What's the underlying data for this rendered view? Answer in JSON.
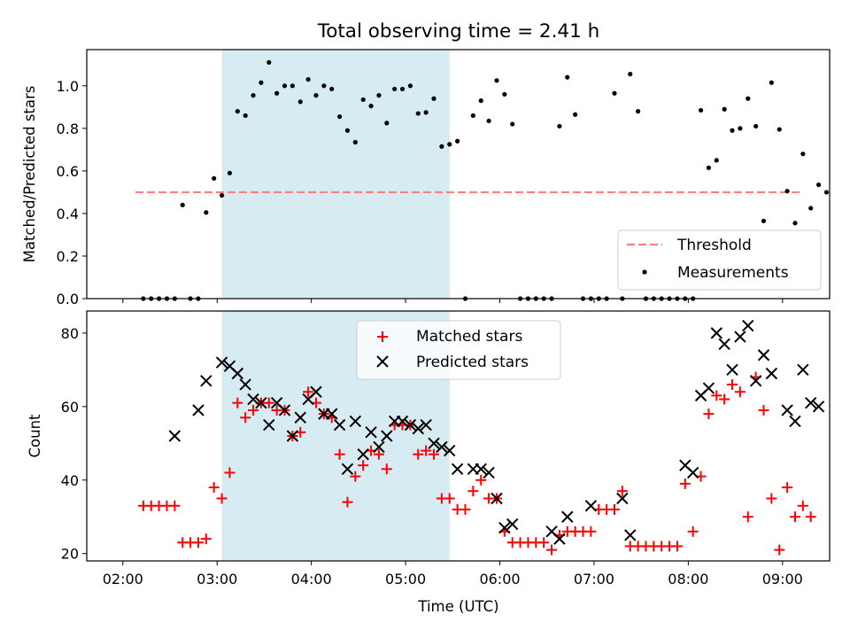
{
  "figure": {
    "title": "Total observing time = 2.41 h",
    "xlabel": "Time (UTC)",
    "xticks": [
      "02:00",
      "03:00",
      "04:00",
      "05:00",
      "06:00",
      "07:00",
      "08:00",
      "09:00"
    ],
    "shaded_interval": [
      "03:03",
      "05:28"
    ],
    "shade_color": "#add8e6"
  },
  "chart_data": [
    {
      "type": "scatter",
      "ylabel": "Matched/Predicted stars",
      "xlim": [
        "01:37",
        "09:30"
      ],
      "ylim": [
        0,
        1.17
      ],
      "yticks": [
        "0.0",
        "0.2",
        "0.4",
        "0.6",
        "0.8",
        "1.0"
      ],
      "legend_position": "lower-right",
      "threshold": {
        "name": "Threshold",
        "value": 0.5,
        "x_range": [
          "02:08",
          "09:13"
        ],
        "color": "#ff7f7f"
      },
      "series": [
        {
          "name": "Measurements",
          "color": "#000000",
          "marker": "dot",
          "points": [
            [
              "02:13",
              0
            ],
            [
              "02:18",
              0
            ],
            [
              "02:23",
              0
            ],
            [
              "02:28",
              0
            ],
            [
              "02:33",
              0
            ],
            [
              "02:38",
              0.44
            ],
            [
              "02:43",
              0
            ],
            [
              "02:48",
              0
            ],
            [
              "02:53",
              0.405
            ],
            [
              "02:58",
              0.565
            ],
            [
              "03:03",
              0.485
            ],
            [
              "03:08",
              0.59
            ],
            [
              "03:13",
              0.88
            ],
            [
              "03:18",
              0.86
            ],
            [
              "03:23",
              0.955
            ],
            [
              "03:28",
              1.015
            ],
            [
              "03:33",
              1.11
            ],
            [
              "03:38",
              0.965
            ],
            [
              "03:43",
              1.0
            ],
            [
              "03:48",
              1.0
            ],
            [
              "03:53",
              0.925
            ],
            [
              "03:58",
              1.03
            ],
            [
              "04:03",
              0.955
            ],
            [
              "04:08",
              1.0
            ],
            [
              "04:13",
              0.985
            ],
            [
              "04:18",
              0.855
            ],
            [
              "04:23",
              0.79
            ],
            [
              "04:28",
              0.735
            ],
            [
              "04:33",
              0.935
            ],
            [
              "04:38",
              0.905
            ],
            [
              "04:43",
              0.955
            ],
            [
              "04:48",
              0.825
            ],
            [
              "04:53",
              0.985
            ],
            [
              "04:58",
              0.985
            ],
            [
              "05:03",
              1.0
            ],
            [
              "05:08",
              0.87
            ],
            [
              "05:13",
              0.875
            ],
            [
              "05:18",
              0.94
            ],
            [
              "05:23",
              0.715
            ],
            [
              "05:28",
              0.725
            ],
            [
              "05:33",
              0.74
            ],
            [
              "05:38",
              0
            ],
            [
              "05:43",
              0.86
            ],
            [
              "05:48",
              0.93
            ],
            [
              "05:53",
              0.835
            ],
            [
              "05:58",
              1.025
            ],
            [
              "06:03",
              0.96
            ],
            [
              "06:08",
              0.82
            ],
            [
              "06:13",
              0
            ],
            [
              "06:18",
              0
            ],
            [
              "06:23",
              0
            ],
            [
              "06:28",
              0
            ],
            [
              "06:33",
              0
            ],
            [
              "06:38",
              0.81
            ],
            [
              "06:43",
              1.04
            ],
            [
              "06:48",
              0.865
            ],
            [
              "06:53",
              0
            ],
            [
              "06:58",
              0
            ],
            [
              "07:03",
              0
            ],
            [
              "07:08",
              0
            ],
            [
              "07:13",
              0.965
            ],
            [
              "07:18",
              0
            ],
            [
              "07:23",
              1.055
            ],
            [
              "07:28",
              0.88
            ],
            [
              "07:33",
              0
            ],
            [
              "07:38",
              0
            ],
            [
              "07:43",
              0
            ],
            [
              "07:48",
              0
            ],
            [
              "07:53",
              0
            ],
            [
              "07:58",
              0
            ],
            [
              "08:03",
              0
            ],
            [
              "08:08",
              0.885
            ],
            [
              "08:13",
              0.615
            ],
            [
              "08:18",
              0.65
            ],
            [
              "08:23",
              0.89
            ],
            [
              "08:28",
              0.79
            ],
            [
              "08:33",
              0.8
            ],
            [
              "08:38",
              0.94
            ],
            [
              "08:43",
              0.81
            ],
            [
              "08:48",
              0.365
            ],
            [
              "08:53",
              1.015
            ],
            [
              "08:58",
              0.795
            ],
            [
              "09:03",
              0.505
            ],
            [
              "09:08",
              0.355
            ],
            [
              "09:13",
              0.68
            ],
            [
              "09:18",
              0.425
            ],
            [
              "09:23",
              0.535
            ],
            [
              "09:28",
              0.5
            ]
          ]
        }
      ]
    },
    {
      "type": "scatter",
      "ylabel": "Count",
      "xlim": [
        "01:37",
        "09:30"
      ],
      "ylim": [
        18,
        86
      ],
      "yticks": [
        "20",
        "40",
        "60",
        "80"
      ],
      "legend_position": "upper-center",
      "series": [
        {
          "name": "Matched stars",
          "color": "#ff0000",
          "marker": "plus",
          "points": [
            [
              "02:13",
              33
            ],
            [
              "02:18",
              33
            ],
            [
              "02:23",
              33
            ],
            [
              "02:28",
              33
            ],
            [
              "02:33",
              33
            ],
            [
              "02:38",
              23
            ],
            [
              "02:43",
              23
            ],
            [
              "02:48",
              23
            ],
            [
              "02:53",
              24
            ],
            [
              "02:58",
              38
            ],
            [
              "03:03",
              35
            ],
            [
              "03:08",
              42
            ],
            [
              "03:13",
              61
            ],
            [
              "03:18",
              57
            ],
            [
              "03:23",
              59
            ],
            [
              "03:28",
              61
            ],
            [
              "03:33",
              61
            ],
            [
              "03:38",
              59
            ],
            [
              "03:43",
              59
            ],
            [
              "03:48",
              52
            ],
            [
              "03:53",
              53
            ],
            [
              "03:58",
              64
            ],
            [
              "04:03",
              61
            ],
            [
              "04:08",
              58
            ],
            [
              "04:13",
              57
            ],
            [
              "04:18",
              47
            ],
            [
              "04:23",
              34
            ],
            [
              "04:28",
              41
            ],
            [
              "04:33",
              44
            ],
            [
              "04:38",
              48
            ],
            [
              "04:43",
              47
            ],
            [
              "04:48",
              43
            ],
            [
              "04:53",
              55
            ],
            [
              "04:58",
              55
            ],
            [
              "05:03",
              55
            ],
            [
              "05:08",
              47
            ],
            [
              "05:13",
              48
            ],
            [
              "05:18",
              47
            ],
            [
              "05:23",
              35
            ],
            [
              "05:28",
              35
            ],
            [
              "05:33",
              32
            ],
            [
              "05:38",
              32
            ],
            [
              "05:43",
              37
            ],
            [
              "05:48",
              40
            ],
            [
              "05:53",
              35
            ],
            [
              "05:58",
              35
            ],
            [
              "06:03",
              26
            ],
            [
              "06:08",
              23
            ],
            [
              "06:13",
              23
            ],
            [
              "06:18",
              23
            ],
            [
              "06:23",
              23
            ],
            [
              "06:28",
              23
            ],
            [
              "06:33",
              21
            ],
            [
              "06:38",
              25
            ],
            [
              "06:43",
              26
            ],
            [
              "06:48",
              26
            ],
            [
              "06:53",
              26
            ],
            [
              "06:58",
              26
            ],
            [
              "07:03",
              32
            ],
            [
              "07:08",
              32
            ],
            [
              "07:13",
              32
            ],
            [
              "07:18",
              37
            ],
            [
              "07:23",
              22
            ],
            [
              "07:28",
              22
            ],
            [
              "07:33",
              22
            ],
            [
              "07:38",
              22
            ],
            [
              "07:43",
              22
            ],
            [
              "07:48",
              22
            ],
            [
              "07:53",
              22
            ],
            [
              "07:58",
              39
            ],
            [
              "08:03",
              26
            ],
            [
              "08:08",
              41
            ],
            [
              "08:13",
              58
            ],
            [
              "08:18",
              63
            ],
            [
              "08:23",
              62
            ],
            [
              "08:28",
              66
            ],
            [
              "08:33",
              64
            ],
            [
              "08:38",
              30
            ],
            [
              "08:43",
              68
            ],
            [
              "08:48",
              59
            ],
            [
              "08:53",
              35
            ],
            [
              "08:58",
              21
            ],
            [
              "09:03",
              38
            ],
            [
              "09:08",
              30
            ],
            [
              "09:13",
              33
            ],
            [
              "09:18",
              30
            ]
          ]
        },
        {
          "name": "Predicted stars",
          "color": "#000000",
          "marker": "cross",
          "points": [
            [
              "02:33",
              52
            ],
            [
              "02:48",
              59
            ],
            [
              "02:53",
              67
            ],
            [
              "03:03",
              72
            ],
            [
              "03:08",
              71
            ],
            [
              "03:13",
              69
            ],
            [
              "03:18",
              66
            ],
            [
              "03:23",
              62
            ],
            [
              "03:28",
              61
            ],
            [
              "03:33",
              55
            ],
            [
              "03:38",
              61
            ],
            [
              "03:43",
              59
            ],
            [
              "03:48",
              52
            ],
            [
              "03:53",
              57
            ],
            [
              "03:58",
              62
            ],
            [
              "04:03",
              64
            ],
            [
              "04:08",
              58
            ],
            [
              "04:13",
              58
            ],
            [
              "04:18",
              55
            ],
            [
              "04:23",
              43
            ],
            [
              "04:28",
              56
            ],
            [
              "04:33",
              47
            ],
            [
              "04:38",
              53
            ],
            [
              "04:43",
              49
            ],
            [
              "04:48",
              52
            ],
            [
              "04:53",
              56
            ],
            [
              "04:58",
              56
            ],
            [
              "05:03",
              55
            ],
            [
              "05:08",
              54
            ],
            [
              "05:13",
              55
            ],
            [
              "05:18",
              50
            ],
            [
              "05:23",
              49
            ],
            [
              "05:28",
              48
            ],
            [
              "05:33",
              43
            ],
            [
              "05:43",
              43
            ],
            [
              "05:48",
              43
            ],
            [
              "05:53",
              42
            ],
            [
              "05:58",
              35
            ],
            [
              "06:03",
              27
            ],
            [
              "06:08",
              28
            ],
            [
              "06:33",
              26
            ],
            [
              "06:38",
              24
            ],
            [
              "06:43",
              30
            ],
            [
              "06:58",
              33
            ],
            [
              "07:18",
              35
            ],
            [
              "07:23",
              25
            ],
            [
              "07:58",
              44
            ],
            [
              "08:03",
              42
            ],
            [
              "08:08",
              63
            ],
            [
              "08:13",
              65
            ],
            [
              "08:18",
              80
            ],
            [
              "08:23",
              77
            ],
            [
              "08:28",
              70
            ],
            [
              "08:33",
              79
            ],
            [
              "08:38",
              82
            ],
            [
              "08:43",
              67
            ],
            [
              "08:48",
              74
            ],
            [
              "08:53",
              69
            ],
            [
              "09:03",
              59
            ],
            [
              "09:08",
              56
            ],
            [
              "09:13",
              70
            ],
            [
              "09:18",
              61
            ],
            [
              "09:23",
              60
            ]
          ]
        }
      ]
    }
  ]
}
